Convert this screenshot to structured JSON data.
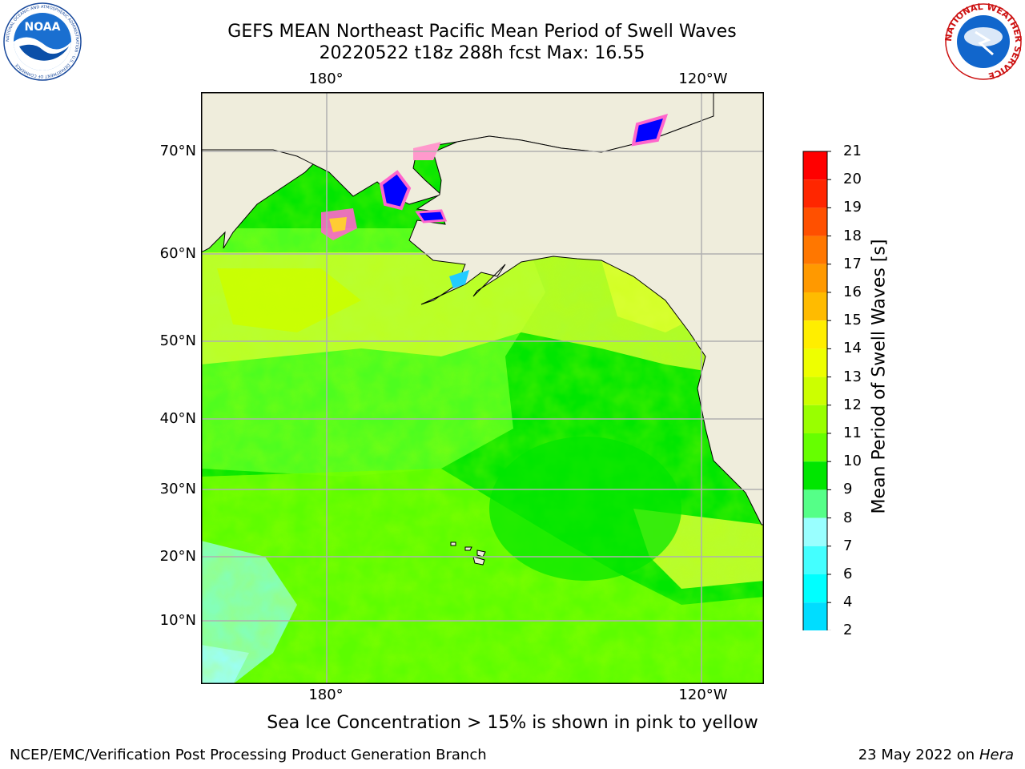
{
  "header": {
    "title": "GEFS MEAN Northeast Pacific Mean Period of Swell Waves",
    "subtitle": "20220522 t18z 288h fcst   Max: 16.55"
  },
  "logos": {
    "left": "NOAA",
    "left_ring": "NATIONAL OCEANIC AND ATMOSPHERIC ADMINISTRATION · U.S. DEPARTMENT OF COMMERCE",
    "right_ring": "NATIONAL WEATHER SERVICE"
  },
  "map": {
    "lon_labels": [
      "180°",
      "120°W"
    ],
    "lat_labels": [
      "70°N",
      "60°N",
      "50°N",
      "40°N",
      "30°N",
      "20°N",
      "10°N"
    ],
    "colors": {
      "land": "#efeddc",
      "ocean_main": "#00e600",
      "ocean_light": "#66ff00",
      "ocean_yellow": "#ccff00",
      "ocean_cyan": "#99ffff",
      "ice_pink": "#ff66cc",
      "ice_blue": "#0000ff"
    }
  },
  "colorbar": {
    "label": "Mean Period of Swell Waves [s]",
    "ticks": [
      "21",
      "20",
      "19",
      "18",
      "17",
      "16",
      "15",
      "14",
      "13",
      "12",
      "11",
      "10",
      "9",
      "8",
      "7",
      "6",
      "4",
      "2"
    ],
    "colors": [
      "#ff0000",
      "#ff2600",
      "#ff5000",
      "#ff7700",
      "#ff9900",
      "#ffbb00",
      "#ffee00",
      "#eeff00",
      "#ccff00",
      "#99ff00",
      "#66ff00",
      "#00e600",
      "#55ff88",
      "#99ffff",
      "#44ffff",
      "#00ffff",
      "#00ddff",
      "#0077ff"
    ],
    "extend_color": "#0000ff"
  },
  "note": "Sea Ice Concentration > 15% is shown in pink to yellow",
  "footer": {
    "left": "NCEP/EMC/Verification Post Processing Product Generation Branch",
    "right_prefix": "23 May 2022 on",
    "right_italic": "Hera"
  }
}
